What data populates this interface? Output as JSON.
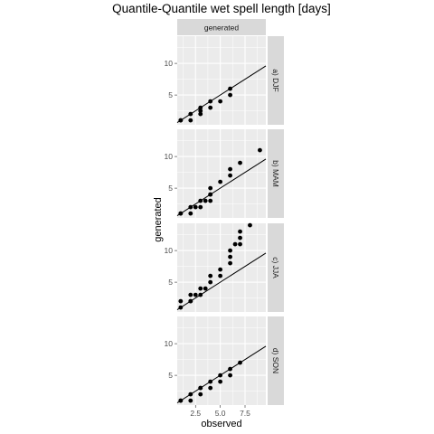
{
  "chart_data": {
    "type": "scatter",
    "title": "Quantile-Quantile wet spell length [days]",
    "xlabel": "observed",
    "ylabel": "generated",
    "column_strip": "generated",
    "xlim": [
      0.65,
      9.6
    ],
    "ylim": [
      0.3,
      14.3
    ],
    "x_ticks": [
      2.5,
      5.0,
      7.5
    ],
    "x_tick_labels": [
      "2.5",
      "5.0",
      "7.5"
    ],
    "y_ticks": [
      5,
      10
    ],
    "y_tick_labels": [
      "5",
      "10"
    ],
    "reference_line": "y = x",
    "grid": true,
    "colors": {
      "panel": "#ebebeb",
      "grid": "#ffffff",
      "strip": "#d9d9d9",
      "points": "#000000"
    },
    "panels": [
      {
        "label": "a) DJF",
        "points": [
          [
            1,
            1
          ],
          [
            1,
            1
          ],
          [
            2,
            1
          ],
          [
            2,
            2
          ],
          [
            3,
            2
          ],
          [
            3,
            2.5
          ],
          [
            3,
            3
          ],
          [
            4,
            3
          ],
          [
            4,
            4
          ],
          [
            5,
            4
          ],
          [
            6,
            5
          ],
          [
            6,
            6
          ]
        ]
      },
      {
        "label": "b) MAM",
        "points": [
          [
            1,
            1
          ],
          [
            1,
            1
          ],
          [
            2,
            1
          ],
          [
            2,
            2
          ],
          [
            2.5,
            2
          ],
          [
            3,
            2
          ],
          [
            3,
            3
          ],
          [
            3.5,
            3
          ],
          [
            4,
            3
          ],
          [
            4,
            4
          ],
          [
            4,
            4
          ],
          [
            4,
            5
          ],
          [
            5,
            6
          ],
          [
            6,
            7
          ],
          [
            6,
            8
          ],
          [
            7,
            9
          ],
          [
            9,
            11
          ]
        ]
      },
      {
        "label": "c) JJA",
        "points": [
          [
            1,
            1
          ],
          [
            1,
            2
          ],
          [
            2,
            2
          ],
          [
            2,
            2
          ],
          [
            2,
            3
          ],
          [
            3,
            3
          ],
          [
            2.5,
            3
          ],
          [
            3,
            4
          ],
          [
            3.5,
            4
          ],
          [
            4,
            5
          ],
          [
            4,
            6
          ],
          [
            5,
            6
          ],
          [
            5,
            7
          ],
          [
            6,
            8
          ],
          [
            6,
            9
          ],
          [
            6,
            10
          ],
          [
            6.5,
            11
          ],
          [
            7,
            11
          ],
          [
            7,
            12
          ],
          [
            7,
            13
          ],
          [
            8,
            14
          ]
        ]
      },
      {
        "label": "d) SON",
        "points": [
          [
            1,
            1
          ],
          [
            1,
            1
          ],
          [
            2,
            1
          ],
          [
            2,
            2
          ],
          [
            3,
            2
          ],
          [
            3,
            3
          ],
          [
            3,
            3
          ],
          [
            4,
            3
          ],
          [
            4,
            4
          ],
          [
            5,
            4
          ],
          [
            5,
            5
          ],
          [
            6,
            5
          ],
          [
            6,
            6
          ],
          [
            7,
            7
          ]
        ]
      }
    ]
  }
}
